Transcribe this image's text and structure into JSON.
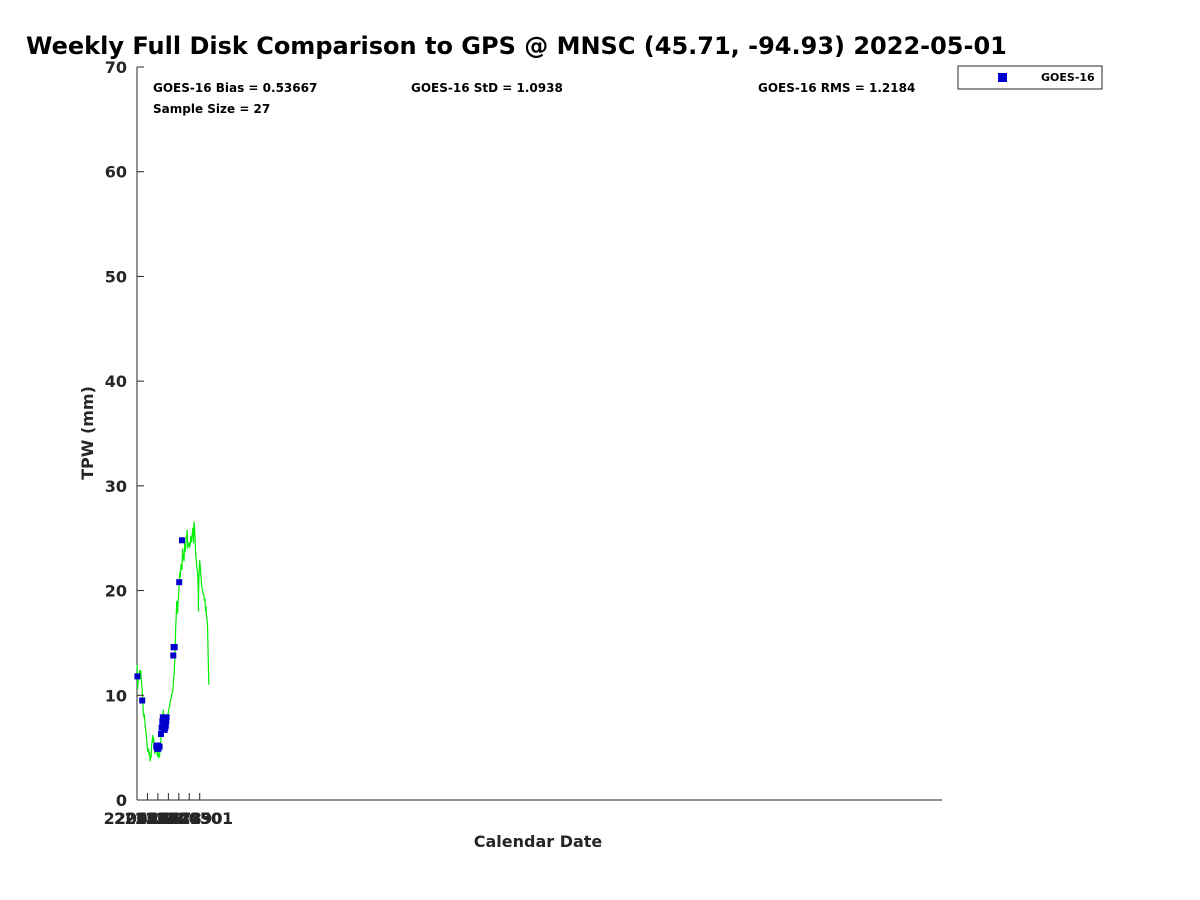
{
  "chart_data": {
    "type": "scatter",
    "title": "Weekly Full Disk Comparison to GPS @ MNSC (45.71, -94.93) 2022-05-01",
    "xlabel": "Calendar Date",
    "ylabel": "TPW (mm)",
    "xlim": [
      220425,
      220502
    ],
    "ylim": [
      0,
      70
    ],
    "x_ticks": [
      {
        "value": 220425,
        "label": "220425"
      },
      {
        "value": 220426,
        "label": "220426"
      },
      {
        "value": 220427,
        "label": "220427"
      },
      {
        "value": 220428,
        "label": "220428"
      },
      {
        "value": 220429,
        "label": "220429"
      },
      {
        "value": 220430,
        "label": "220430"
      },
      {
        "value": 220431,
        "label": "220501"
      }
    ],
    "y_ticks": [
      0,
      10,
      20,
      30,
      40,
      50,
      60,
      70
    ],
    "stats": {
      "bias": "GOES-16 Bias = 0.53667",
      "std": "GOES-16 StD = 1.0938",
      "rms": "GOES-16 RMS = 1.2184",
      "sample_size": "Sample Size = 27"
    },
    "legend": {
      "entries": [
        "GOES-16"
      ],
      "position": "outside-top-right"
    },
    "colors": {
      "goes16": "#0000cc",
      "gps": "#00ee00",
      "axis": "#262626"
    },
    "series": [
      {
        "name": "GPS",
        "type": "line",
        "points": [
          [
            220425.0,
            12.9
          ],
          [
            220425.05,
            12.0
          ],
          [
            220425.07,
            10.6
          ],
          [
            220425.12,
            11.5
          ],
          [
            220425.18,
            11.8
          ],
          [
            220425.22,
            12.1
          ],
          [
            220425.25,
            12.3
          ],
          [
            220425.3,
            12.2
          ],
          [
            220425.35,
            12.4
          ],
          [
            220425.4,
            11.6
          ],
          [
            220425.45,
            11.0
          ],
          [
            220425.5,
            10.5
          ],
          [
            220425.55,
            9.6
          ],
          [
            220425.6,
            8.4
          ],
          [
            220425.65,
            8.0
          ],
          [
            220425.7,
            8.1
          ],
          [
            220425.75,
            7.6
          ],
          [
            220425.8,
            6.9
          ],
          [
            220425.85,
            6.5
          ],
          [
            220425.9,
            6.1
          ],
          [
            220425.95,
            5.5
          ],
          [
            220426.0,
            4.8
          ],
          [
            220426.05,
            4.6
          ],
          [
            220426.1,
            4.9
          ],
          [
            220426.15,
            4.3
          ],
          [
            220426.2,
            4.6
          ],
          [
            220426.25,
            3.7
          ],
          [
            220426.3,
            4.3
          ],
          [
            220426.35,
            4.0
          ],
          [
            220426.4,
            5.2
          ],
          [
            220426.45,
            5.7
          ],
          [
            220426.52,
            6.2
          ],
          [
            220426.55,
            5.5
          ],
          [
            220426.6,
            5.9
          ],
          [
            220426.65,
            5.0
          ],
          [
            220426.7,
            4.4
          ],
          [
            220426.75,
            4.6
          ],
          [
            220426.8,
            5.3
          ],
          [
            220426.85,
            4.6
          ],
          [
            220426.9,
            4.9
          ],
          [
            220426.95,
            4.2
          ],
          [
            220427.0,
            5.0
          ],
          [
            220427.05,
            4.0
          ],
          [
            220427.1,
            4.2
          ],
          [
            220427.15,
            4.1
          ],
          [
            220427.2,
            4.9
          ],
          [
            220427.25,
            4.8
          ],
          [
            220427.3,
            6.0
          ],
          [
            220427.35,
            7.2
          ],
          [
            220427.4,
            7.7
          ],
          [
            220427.45,
            7.4
          ],
          [
            220427.52,
            8.6
          ],
          [
            220427.55,
            7.8
          ],
          [
            220427.6,
            7.2
          ],
          [
            220427.65,
            6.7
          ],
          [
            220427.7,
            6.5
          ],
          [
            220427.75,
            7.3
          ],
          [
            220427.8,
            7.8
          ],
          [
            220427.85,
            7.4
          ],
          [
            220428.0,
            8.4
          ],
          [
            220428.2,
            9.5
          ],
          [
            220428.43,
            10.5
          ],
          [
            220428.5,
            11.5
          ],
          [
            220428.55,
            12.0
          ],
          [
            220428.6,
            13.0
          ],
          [
            220428.65,
            14.5
          ],
          [
            220428.7,
            16.5
          ],
          [
            220428.75,
            17.5
          ],
          [
            220428.8,
            19.0
          ],
          [
            220428.85,
            18.5
          ],
          [
            220428.88,
            17.8
          ],
          [
            220428.92,
            18.8
          ],
          [
            220429.0,
            19.8
          ],
          [
            220429.05,
            20.9
          ],
          [
            220429.1,
            21.8
          ],
          [
            220429.15,
            21.3
          ],
          [
            220429.2,
            22.5
          ],
          [
            220429.25,
            22.4
          ],
          [
            220429.3,
            22.0
          ],
          [
            220429.35,
            24.0
          ],
          [
            220429.4,
            23.0
          ],
          [
            220429.45,
            23.5
          ],
          [
            220429.5,
            22.8
          ],
          [
            220429.55,
            24.5
          ],
          [
            220429.6,
            23.7
          ],
          [
            220429.65,
            24.0
          ],
          [
            220429.7,
            25.0
          ],
          [
            220429.75,
            25.2
          ],
          [
            220429.8,
            25.8
          ],
          [
            220429.85,
            24.0
          ],
          [
            220429.9,
            24.5
          ],
          [
            220429.95,
            24.3
          ],
          [
            220430.0,
            24.6
          ],
          [
            220430.05,
            24.1
          ],
          [
            220430.1,
            24.5
          ],
          [
            220430.15,
            25.2
          ],
          [
            220430.2,
            24.6
          ],
          [
            220430.25,
            25.1
          ],
          [
            220430.3,
            25.5
          ],
          [
            220430.35,
            26.0
          ],
          [
            220430.4,
            24.5
          ],
          [
            220430.45,
            26.6
          ],
          [
            220430.5,
            26.0
          ],
          [
            220430.55,
            25.2
          ],
          [
            220430.6,
            23.8
          ],
          [
            220430.65,
            23.0
          ],
          [
            220430.7,
            22.5
          ],
          [
            220430.75,
            22.0
          ],
          [
            220430.8,
            21.8
          ],
          [
            220430.85,
            20.3
          ],
          [
            220430.87,
            18.0
          ],
          [
            220430.9,
            20.5
          ],
          [
            220430.95,
            21.8
          ],
          [
            220431.0,
            22.9
          ],
          [
            220431.05,
            22.3
          ],
          [
            220431.1,
            21.5
          ],
          [
            220431.15,
            21.0
          ],
          [
            220431.2,
            20.4
          ],
          [
            220431.3,
            19.8
          ],
          [
            220431.4,
            19.5
          ],
          [
            220431.45,
            19.0
          ],
          [
            220431.5,
            19.2
          ],
          [
            220431.55,
            18.0
          ],
          [
            220431.6,
            18.5
          ],
          [
            220431.65,
            17.5
          ],
          [
            220431.7,
            17.3
          ],
          [
            220431.75,
            16.5
          ],
          [
            220431.8,
            14.0
          ],
          [
            220431.85,
            12.0
          ],
          [
            220431.87,
            11.0
          ]
        ]
      },
      {
        "name": "GOES-16",
        "type": "scatter",
        "points": [
          [
            220425.04,
            11.8
          ],
          [
            220425.5,
            9.5
          ],
          [
            220426.85,
            5.1
          ],
          [
            220426.88,
            5.2
          ],
          [
            220426.92,
            4.9
          ],
          [
            220426.97,
            4.9
          ],
          [
            220427.0,
            5.2
          ],
          [
            220427.05,
            4.9
          ],
          [
            220427.16,
            5.1
          ],
          [
            220427.3,
            6.3
          ],
          [
            220427.35,
            6.9
          ],
          [
            220427.42,
            7.5
          ],
          [
            220427.47,
            7.9
          ],
          [
            220427.55,
            6.9
          ],
          [
            220427.6,
            6.7
          ],
          [
            220427.65,
            6.7
          ],
          [
            220427.7,
            6.9
          ],
          [
            220427.75,
            7.1
          ],
          [
            220427.8,
            7.5
          ],
          [
            220427.83,
            7.9
          ],
          [
            220428.47,
            13.8
          ],
          [
            220428.5,
            14.6
          ],
          [
            220428.54,
            14.6
          ],
          [
            220428.58,
            14.6
          ],
          [
            220428.61,
            14.6
          ],
          [
            220429.04,
            20.8
          ],
          [
            220429.3,
            24.8
          ]
        ]
      }
    ]
  }
}
